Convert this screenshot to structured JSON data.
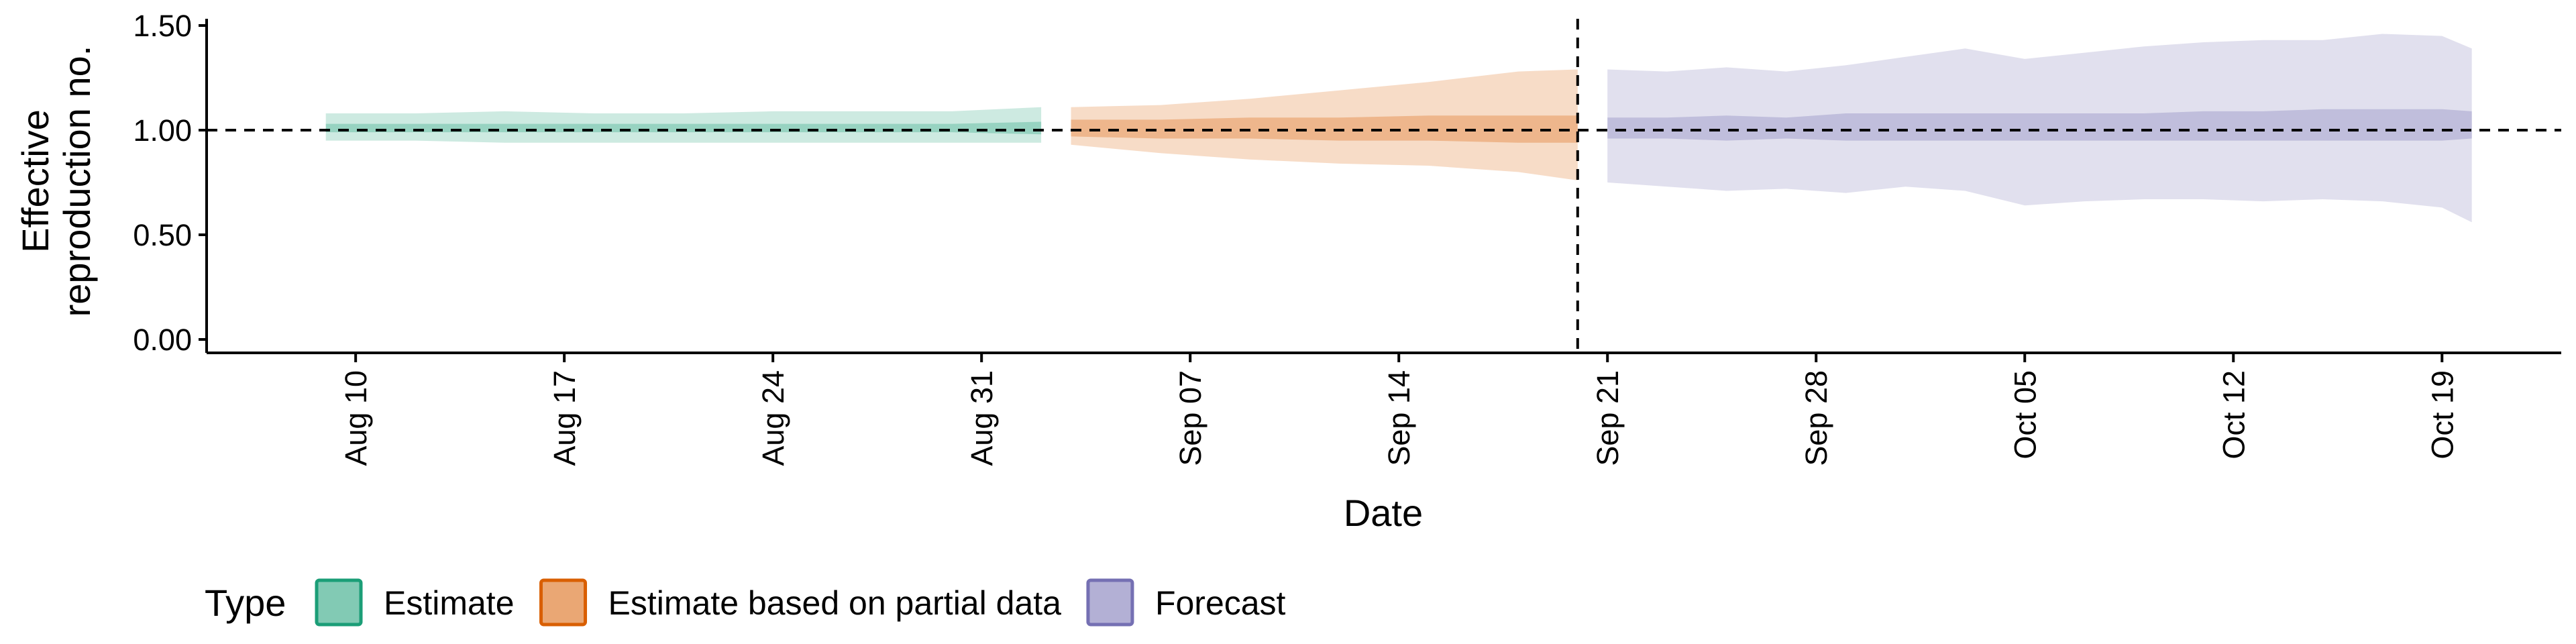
{
  "chart_data": {
    "type": "area",
    "xlabel": "Date",
    "ylabel": "Effective\nreproduction no.",
    "ylim": [
      0,
      1.55
    ],
    "y_ticks": [
      "0.00",
      "0.50",
      "1.00",
      "1.50"
    ],
    "x_ticks": [
      {
        "date": "2020-08-10",
        "label": "Aug 10"
      },
      {
        "date": "2020-08-17",
        "label": "Aug 17"
      },
      {
        "date": "2020-08-24",
        "label": "Aug 24"
      },
      {
        "date": "2020-08-31",
        "label": "Aug 31"
      },
      {
        "date": "2020-09-07",
        "label": "Sep 07"
      },
      {
        "date": "2020-09-14",
        "label": "Sep 14"
      },
      {
        "date": "2020-09-21",
        "label": "Sep 21"
      },
      {
        "date": "2020-09-28",
        "label": "Sep 28"
      },
      {
        "date": "2020-10-05",
        "label": "Oct 05"
      },
      {
        "date": "2020-10-12",
        "label": "Oct 12"
      },
      {
        "date": "2020-10-19",
        "label": "Oct 19"
      }
    ],
    "xlim": [
      "2020-08-05",
      "2020-10-23"
    ],
    "reference_line_y": 1.0,
    "forecast_date_line": "2020-09-20",
    "legend_title": "Type",
    "legend_position": "bottom-left",
    "series": [
      {
        "name": "Estimate",
        "color": "#1b9e77",
        "x": [
          "2020-08-09",
          "2020-08-12",
          "2020-08-15",
          "2020-08-18",
          "2020-08-21",
          "2020-08-24",
          "2020-08-27",
          "2020-08-30",
          "2020-09-02"
        ],
        "outer_upper": [
          1.08,
          1.08,
          1.09,
          1.08,
          1.08,
          1.09,
          1.09,
          1.09,
          1.11
        ],
        "outer_lower": [
          0.95,
          0.95,
          0.94,
          0.94,
          0.94,
          0.94,
          0.94,
          0.94,
          0.94
        ],
        "inner_upper": [
          1.03,
          1.03,
          1.03,
          1.03,
          1.03,
          1.03,
          1.03,
          1.03,
          1.04
        ],
        "inner_lower": [
          0.99,
          0.99,
          0.99,
          0.99,
          0.99,
          0.99,
          0.99,
          0.99,
          0.98
        ]
      },
      {
        "name": "Estimate based on partial data",
        "color": "#d95f02",
        "x": [
          "2020-09-03",
          "2020-09-06",
          "2020-09-09",
          "2020-09-12",
          "2020-09-15",
          "2020-09-18",
          "2020-09-20"
        ],
        "outer_upper": [
          1.11,
          1.12,
          1.15,
          1.19,
          1.23,
          1.28,
          1.29
        ],
        "outer_lower": [
          0.93,
          0.89,
          0.86,
          0.84,
          0.83,
          0.8,
          0.76
        ],
        "inner_upper": [
          1.05,
          1.05,
          1.06,
          1.06,
          1.07,
          1.07,
          1.07
        ],
        "inner_lower": [
          0.97,
          0.96,
          0.96,
          0.95,
          0.95,
          0.94,
          0.94
        ]
      },
      {
        "name": "Forecast",
        "color": "#7570b3",
        "x": [
          "2020-09-21",
          "2020-09-23",
          "2020-09-25",
          "2020-09-27",
          "2020-09-29",
          "2020-10-01",
          "2020-10-03",
          "2020-10-05",
          "2020-10-07",
          "2020-10-09",
          "2020-10-11",
          "2020-10-13",
          "2020-10-15",
          "2020-10-17",
          "2020-10-19",
          "2020-10-20"
        ],
        "outer_upper": [
          1.29,
          1.28,
          1.3,
          1.28,
          1.31,
          1.35,
          1.39,
          1.34,
          1.37,
          1.4,
          1.42,
          1.43,
          1.43,
          1.46,
          1.45,
          1.39
        ],
        "outer_lower": [
          0.75,
          0.73,
          0.71,
          0.72,
          0.7,
          0.73,
          0.71,
          0.64,
          0.66,
          0.67,
          0.67,
          0.66,
          0.67,
          0.66,
          0.63,
          0.56
        ],
        "inner_upper": [
          1.06,
          1.06,
          1.07,
          1.06,
          1.08,
          1.08,
          1.08,
          1.08,
          1.08,
          1.08,
          1.09,
          1.09,
          1.1,
          1.1,
          1.1,
          1.09
        ],
        "inner_lower": [
          0.96,
          0.96,
          0.95,
          0.96,
          0.95,
          0.95,
          0.95,
          0.95,
          0.95,
          0.95,
          0.95,
          0.95,
          0.95,
          0.95,
          0.95,
          0.96
        ]
      }
    ]
  }
}
